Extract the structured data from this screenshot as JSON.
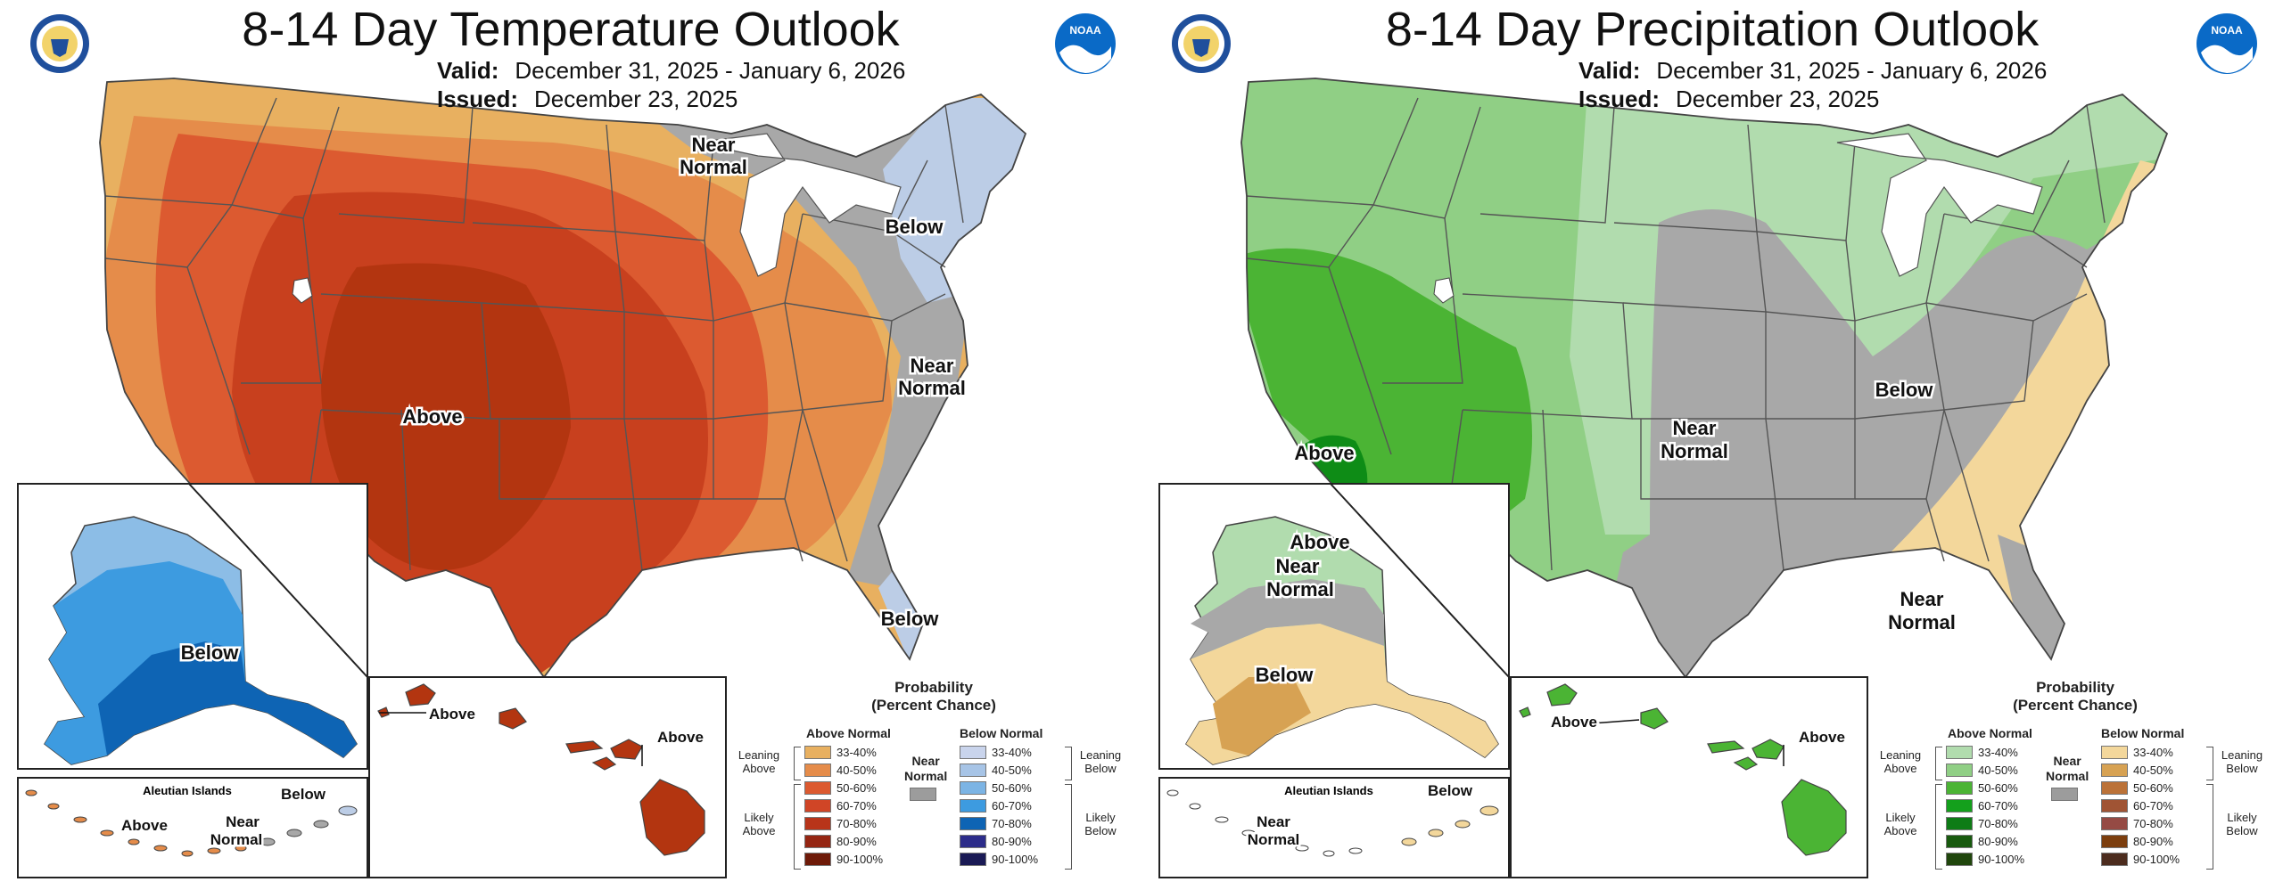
{
  "panels": [
    {
      "title": "8-14 Day Temperature Outlook",
      "valid_label": "Valid:",
      "valid_value": "December 31, 2025 - January 6, 2026",
      "issued_label": "Issued:",
      "issued_value": "December 23, 2025",
      "map_labels": {
        "near_normal_top": [
          "Near",
          "Normal"
        ],
        "below_ne": "Below",
        "near_normal_east": [
          "Near",
          "Normal"
        ],
        "above": "Above",
        "below_fl": "Below",
        "ak_below": "Below",
        "aleutians": "Aleutian Islands",
        "al_above": "Above",
        "al_near": [
          "Near",
          "Normal"
        ],
        "al_below": "Below",
        "hi_above_1": "Above",
        "hi_above_2": "Above"
      },
      "colors": {
        "ring1": "#e8b060",
        "ring2": "#e58c4a",
        "ring3": "#dc5a30",
        "ring4": "#c8401e",
        "ring5": "#b33510",
        "gray": "#a8a8a8",
        "below": "#bccde6",
        "ak1": "#8cbde6",
        "ak2": "#3d9be0",
        "ak3": "#0e64b4",
        "hawaii": "#b33510"
      }
    },
    {
      "title": "8-14 Day Precipitation Outlook",
      "valid_label": "Valid:",
      "valid_value": "December 31, 2025 - January 6, 2026",
      "issued_label": "Issued:",
      "issued_value": "December 23, 2025",
      "map_labels": {
        "above_sw": "Above",
        "near_normal_center": [
          "Near",
          "Normal"
        ],
        "below_east": "Below",
        "near_normal_fl": [
          "Near",
          "Normal"
        ],
        "ak_above": "Above",
        "ak_near": [
          "Near",
          "Normal"
        ],
        "ak_below": "Below",
        "aleutians": "Aleutian Islands",
        "al_near": [
          "Near",
          "Normal"
        ],
        "al_below": "Below",
        "hi_above_1": "Above",
        "hi_above_2": "Above"
      },
      "colors": {
        "green1": "#b1dcae",
        "green2": "#90cf85",
        "green3": "#4bb434",
        "green4": "#0e8c16",
        "gray": "#a8a8a8",
        "tan": "#f3d79b",
        "tan2": "#d7a253",
        "hawaii": "#4bb434"
      }
    }
  ],
  "legend": {
    "title_line1": "Probability",
    "title_line2": "(Percent Chance)",
    "near_normal": [
      "Near",
      "Normal"
    ],
    "temperature": {
      "above_header": "Above Normal",
      "below_header": "Below Normal",
      "leaning_above": [
        "Leaning",
        "Above"
      ],
      "likely_above": [
        "Likely",
        "Above"
      ],
      "leaning_below": [
        "Leaning",
        "Below"
      ],
      "likely_below": [
        "Likely",
        "Below"
      ],
      "above_rows": [
        {
          "label": "33-40%",
          "color": "#e8b060"
        },
        {
          "label": "40-50%",
          "color": "#e58c4a"
        },
        {
          "label": "50-60%",
          "color": "#dc5a30"
        },
        {
          "label": "60-70%",
          "color": "#d04526"
        },
        {
          "label": "70-80%",
          "color": "#b8341a"
        },
        {
          "label": "80-90%",
          "color": "#952512"
        },
        {
          "label": "90-100%",
          "color": "#6e1a08"
        }
      ],
      "below_rows": [
        {
          "label": "33-40%",
          "color": "#c9d4ec"
        },
        {
          "label": "40-50%",
          "color": "#a7c4e6"
        },
        {
          "label": "50-60%",
          "color": "#7cb4e4"
        },
        {
          "label": "60-70%",
          "color": "#3d9be0"
        },
        {
          "label": "70-80%",
          "color": "#0e64b4"
        },
        {
          "label": "80-90%",
          "color": "#2c2c8a"
        },
        {
          "label": "90-100%",
          "color": "#1a1a55"
        }
      ]
    },
    "precipitation": {
      "above_header": "Above Normal",
      "below_header": "Below Normal",
      "leaning_above": [
        "Leaning",
        "Above"
      ],
      "likely_above": [
        "Likely",
        "Above"
      ],
      "leaning_below": [
        "Leaning",
        "Below"
      ],
      "likely_below": [
        "Likely",
        "Below"
      ],
      "above_rows": [
        {
          "label": "33-40%",
          "color": "#b1dcae"
        },
        {
          "label": "40-50%",
          "color": "#90cf85"
        },
        {
          "label": "50-60%",
          "color": "#4bb434"
        },
        {
          "label": "60-70%",
          "color": "#14a01c"
        },
        {
          "label": "70-80%",
          "color": "#0e7c16"
        },
        {
          "label": "80-90%",
          "color": "#185a0e"
        },
        {
          "label": "90-100%",
          "color": "#20460c"
        }
      ],
      "below_rows": [
        {
          "label": "33-40%",
          "color": "#f3d79b"
        },
        {
          "label": "40-50%",
          "color": "#d7a253"
        },
        {
          "label": "50-60%",
          "color": "#bb7238"
        },
        {
          "label": "60-70%",
          "color": "#a05434"
        },
        {
          "label": "70-80%",
          "color": "#954a44"
        },
        {
          "label": "80-90%",
          "color": "#7c3e0e"
        },
        {
          "label": "90-100%",
          "color": "#4c2c1e"
        }
      ]
    }
  }
}
